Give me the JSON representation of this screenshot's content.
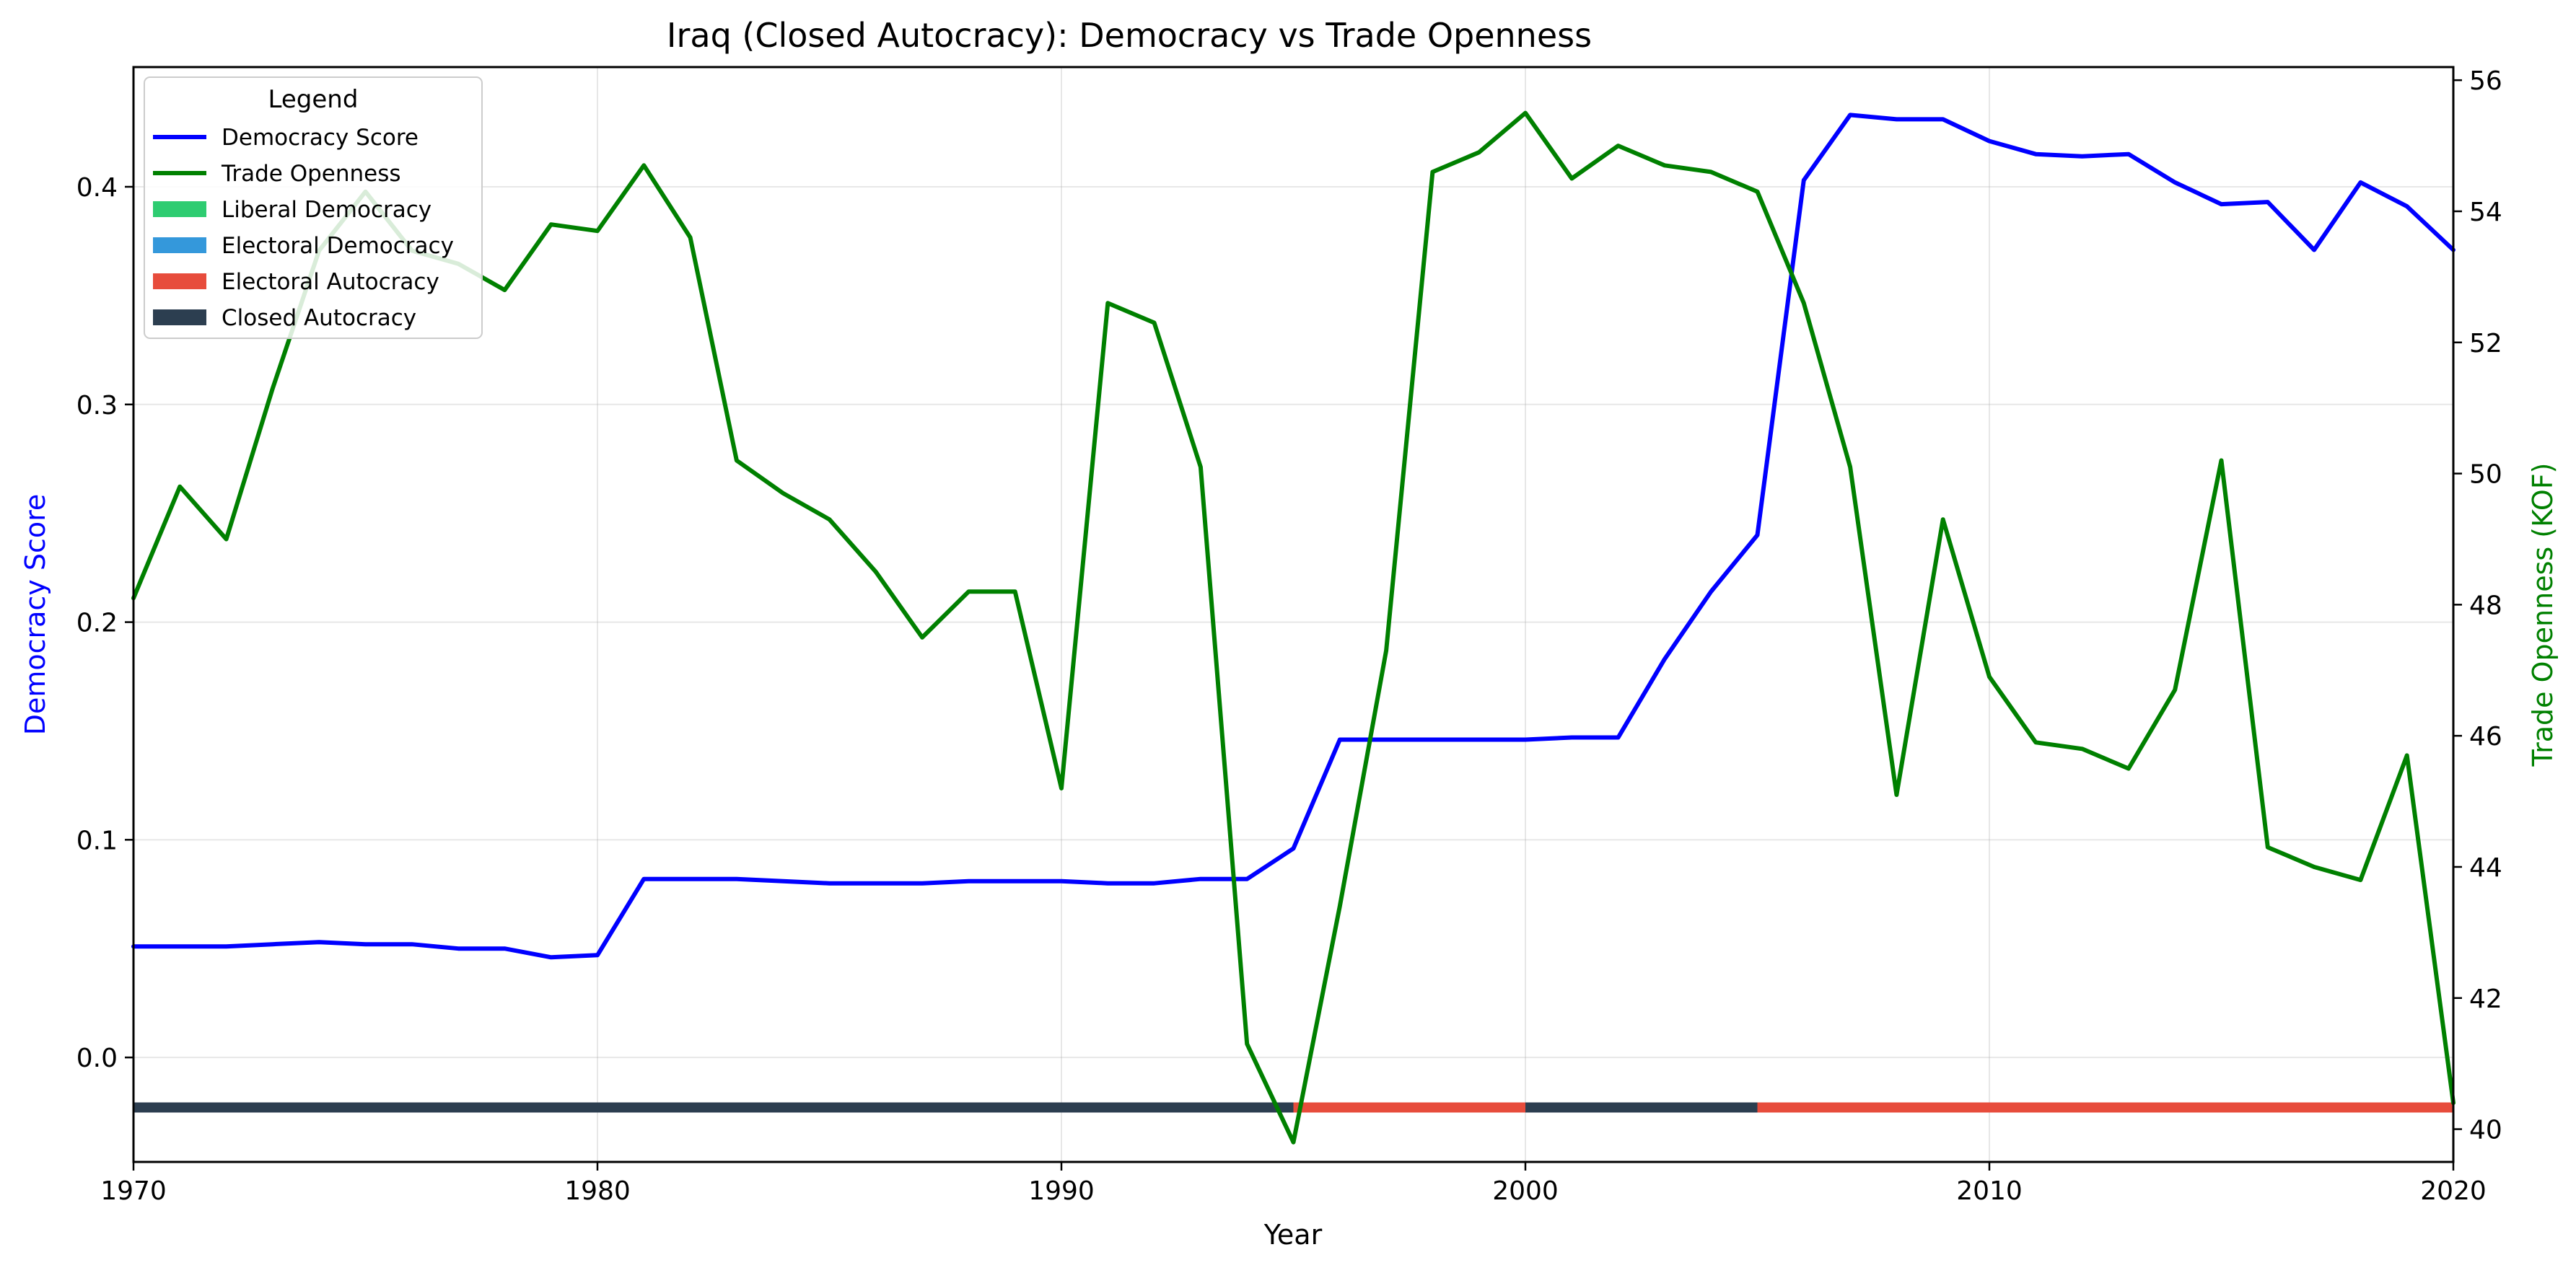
{
  "chart_data": {
    "type": "line",
    "title": "Iraq (Closed Autocracy): Democracy vs Trade Openness",
    "xlabel": "Year",
    "ylabel_left": "Democracy Score",
    "ylabel_right": "Trade Openness (KOF)",
    "xlim": [
      1970,
      2020
    ],
    "ylim_left": [
      -0.048,
      0.455
    ],
    "ylim_right": [
      39.5,
      56.2
    ],
    "x_ticks": [
      "1970",
      "1980",
      "1990",
      "2000",
      "2010",
      "2020"
    ],
    "y_left_ticks": [
      "0.0",
      "0.1",
      "0.2",
      "0.3",
      "0.4"
    ],
    "y_right_ticks": [
      "40",
      "42",
      "44",
      "46",
      "48",
      "50",
      "52",
      "54",
      "56"
    ],
    "grid": true,
    "legend": {
      "title": "Legend",
      "placement": "top-left",
      "entries": [
        {
          "label": "Democracy Score",
          "kind": "line",
          "color": "#0000ff"
        },
        {
          "label": "Trade Openness",
          "kind": "line",
          "color": "#008000"
        },
        {
          "label": "Liberal Democracy",
          "kind": "patch",
          "color": "#2ecc71"
        },
        {
          "label": "Electoral Democracy",
          "kind": "patch",
          "color": "#3498db"
        },
        {
          "label": "Electoral Autocracy",
          "kind": "patch",
          "color": "#e74c3c"
        },
        {
          "label": "Closed Autocracy",
          "kind": "patch",
          "color": "#2c3e50"
        }
      ]
    },
    "x": [
      1970,
      1971,
      1972,
      1973,
      1974,
      1975,
      1976,
      1977,
      1978,
      1979,
      1980,
      1981,
      1982,
      1983,
      1984,
      1985,
      1986,
      1987,
      1988,
      1989,
      1990,
      1991,
      1992,
      1993,
      1994,
      1995,
      1996,
      1997,
      1998,
      1999,
      2000,
      2001,
      2002,
      2003,
      2004,
      2005,
      2006,
      2007,
      2008,
      2009,
      2010,
      2011,
      2012,
      2013,
      2014,
      2015,
      2016,
      2017,
      2018,
      2019,
      2020
    ],
    "series": [
      {
        "name": "Democracy Score",
        "axis": "left",
        "color": "#0000ff",
        "values": [
          0.051,
          0.051,
          0.051,
          0.052,
          0.053,
          0.052,
          0.052,
          0.05,
          0.05,
          0.046,
          0.047,
          0.082,
          0.082,
          0.082,
          0.081,
          0.08,
          0.08,
          0.08,
          0.081,
          0.081,
          0.081,
          0.08,
          0.08,
          0.082,
          0.082,
          0.096,
          0.146,
          0.146,
          0.146,
          0.146,
          0.146,
          0.147,
          0.147,
          0.183,
          0.214,
          0.24,
          0.403,
          0.433,
          0.431,
          0.431,
          0.421,
          0.415,
          0.414,
          0.415,
          0.402,
          0.392,
          0.393,
          0.371,
          0.402,
          0.391,
          0.371
        ]
      },
      {
        "name": "Trade Openness",
        "axis": "right",
        "color": "#008000",
        "values": [
          48.1,
          49.8,
          49.0,
          51.3,
          53.4,
          54.3,
          53.4,
          53.2,
          52.8,
          53.8,
          53.7,
          54.7,
          53.6,
          50.2,
          49.7,
          49.3,
          48.5,
          47.5,
          48.2,
          48.2,
          45.2,
          52.6,
          52.3,
          50.1,
          41.3,
          39.8,
          43.4,
          47.3,
          54.6,
          54.9,
          55.5,
          54.5,
          55.0,
          54.7,
          54.6,
          54.3,
          52.6,
          50.1,
          45.1,
          49.3,
          46.9,
          45.9,
          45.8,
          45.5,
          46.7,
          50.2,
          44.3,
          44.0,
          43.8,
          45.7,
          40.4
        ]
      }
    ],
    "regime_bands": [
      {
        "start": 1970,
        "end": 1995,
        "regime": "Closed Autocracy",
        "color": "#2c3e50"
      },
      {
        "start": 1995,
        "end": 2000,
        "regime": "Electoral Autocracy",
        "color": "#e74c3c"
      },
      {
        "start": 2000,
        "end": 2005,
        "regime": "Closed Autocracy",
        "color": "#2c3e50"
      },
      {
        "start": 2005,
        "end": 2020,
        "regime": "Electoral Autocracy",
        "color": "#e74c3c"
      }
    ],
    "regime_band_level": -0.023
  }
}
